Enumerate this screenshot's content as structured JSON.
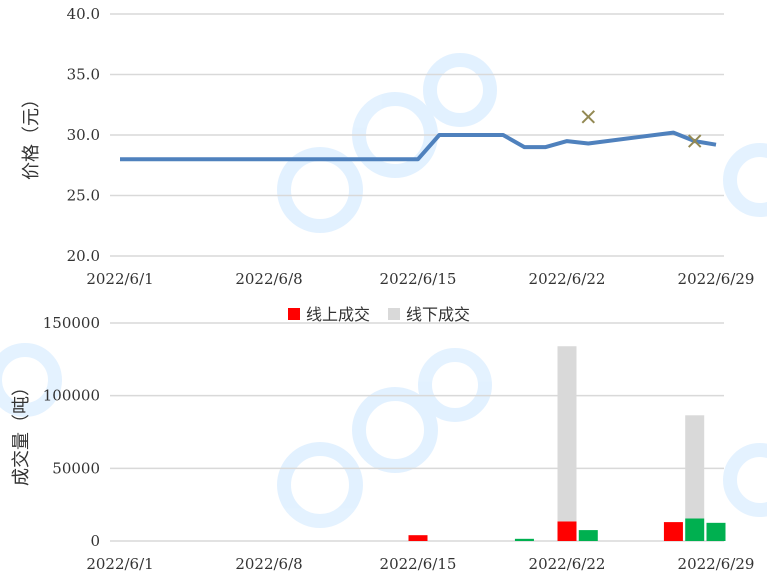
{
  "chart_data": [
    {
      "type": "line",
      "ylabel": "价格（元）",
      "ylim": [
        20,
        40
      ],
      "yticks": [
        "20.0",
        "25.0",
        "30.0",
        "35.0",
        "40.0"
      ],
      "xtick_labels": [
        "2022/6/1",
        "2022/6/8",
        "2022/6/15",
        "2022/6/22",
        "2022/6/29"
      ],
      "grid": true,
      "color": "#4f81bd",
      "series": [
        {
          "x": [
            "2022/6/1",
            "2022/6/2",
            "2022/6/3",
            "2022/6/4",
            "2022/6/5",
            "2022/6/6",
            "2022/6/7",
            "2022/6/8",
            "2022/6/9",
            "2022/6/10",
            "2022/6/11",
            "2022/6/12",
            "2022/6/13",
            "2022/6/14",
            "2022/6/15",
            "2022/6/16",
            "2022/6/17",
            "2022/6/18",
            "2022/6/19",
            "2022/6/20",
            "2022/6/21",
            "2022/6/22",
            "2022/6/23",
            "2022/6/27",
            "2022/6/28",
            "2022/6/29"
          ],
          "values": [
            28.0,
            28.0,
            28.0,
            28.0,
            28.0,
            28.0,
            28.0,
            28.0,
            28.0,
            28.0,
            28.0,
            28.0,
            28.0,
            28.0,
            28.0,
            30.0,
            30.0,
            30.0,
            30.0,
            29.0,
            29.0,
            29.5,
            29.3,
            30.2,
            29.5,
            29.2
          ]
        }
      ],
      "markers": [
        {
          "x": "2022/6/23",
          "y": 31.5,
          "symbol": "x",
          "color": "#938953"
        },
        {
          "x": "2022/6/28",
          "y": 29.5,
          "symbol": "x",
          "color": "#938953"
        }
      ]
    },
    {
      "type": "bar",
      "stacked": true,
      "ylabel": "成交量（吨）",
      "ylim": [
        0,
        150000
      ],
      "yticks": [
        "0",
        "50000",
        "100000",
        "150000"
      ],
      "xtick_labels": [
        "2022/6/1",
        "2022/6/8",
        "2022/6/15",
        "2022/6/22",
        "2022/6/29"
      ],
      "grid": true,
      "legend": "top",
      "legend_entries": [
        {
          "label": "线上成交",
          "color": "#ff0000"
        },
        {
          "label": "线下成交",
          "color": "#d9d9d9"
        }
      ],
      "bars": [
        {
          "x": "2022/6/15",
          "online": 4000,
          "offline": 0,
          "online_color": "#ff0000"
        },
        {
          "x": "2022/6/20",
          "online": 1500,
          "offline": 0,
          "online_color": "#00b050"
        },
        {
          "x": "2022/6/22",
          "online": 13500,
          "offline": 120500,
          "online_color": "#ff0000"
        },
        {
          "x": "2022/6/23",
          "online": 7500,
          "offline": 0,
          "online_color": "#00b050"
        },
        {
          "x": "2022/6/27",
          "online": 13000,
          "offline": 0,
          "online_color": "#ff0000"
        },
        {
          "x": "2022/6/28",
          "online": 15500,
          "offline": 71000,
          "online_color": "#00b050"
        },
        {
          "x": "2022/6/29",
          "online": 12500,
          "offline": 0,
          "online_color": "#00b050"
        }
      ]
    }
  ]
}
